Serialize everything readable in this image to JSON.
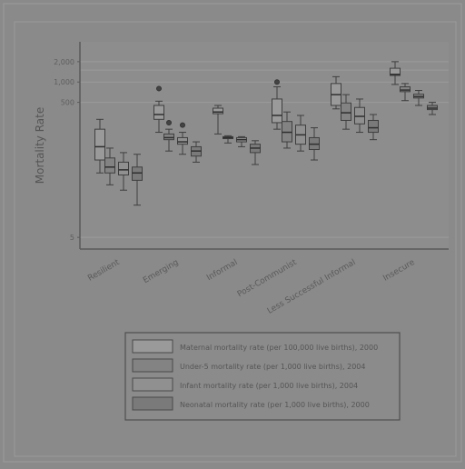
{
  "chart_data": {
    "type": "box",
    "title": "",
    "xlabel": "",
    "ylabel": "Mortality Rate",
    "y_scale": "log",
    "y_ticks": [
      "2,000",
      "1,000",
      "500",
      "5"
    ],
    "categories": [
      "Resilient",
      "Emerging",
      "Informal",
      "Post-Communist",
      "Less Successful Informal",
      "Insecure"
    ],
    "series": [
      {
        "name": "Maternal mortality rate (per 100,000 live births), 2000",
        "color": "#9a9a9a",
        "boxes": [
          {
            "min": 45,
            "q1": 70,
            "median": 110,
            "q3": 200,
            "max": 280
          },
          {
            "min": 180,
            "q1": 280,
            "median": 330,
            "q3": 450,
            "max": 520,
            "outliers": [
              800
            ]
          },
          {
            "min": 170,
            "q1": 340,
            "median": 360,
            "q3": 410,
            "max": 450
          },
          {
            "min": 200,
            "q1": 250,
            "median": 320,
            "q3": 560,
            "max": 850,
            "outliers": [
              1000
            ]
          },
          {
            "min": 400,
            "q1": 450,
            "median": 650,
            "q3": 950,
            "max": 1200
          },
          {
            "min": 920,
            "q1": 1250,
            "median": 1300,
            "q3": 1600,
            "max": 2000
          }
        ]
      },
      {
        "name": "Under-5 mortality rate (per 1,000 live births), 2004",
        "color": "#838383",
        "boxes": [
          {
            "min": 30,
            "q1": 45,
            "median": 55,
            "q3": 75,
            "max": 105
          },
          {
            "min": 95,
            "q1": 140,
            "median": 150,
            "q3": 170,
            "max": 200,
            "outliers": [
              250
            ]
          },
          {
            "min": 125,
            "q1": 145,
            "median": 150,
            "q3": 155,
            "max": 160
          },
          {
            "min": 105,
            "q1": 130,
            "median": 180,
            "q3": 260,
            "max": 360
          },
          {
            "min": 200,
            "q1": 270,
            "median": 350,
            "q3": 490,
            "max": 650
          },
          {
            "min": 530,
            "q1": 720,
            "median": 760,
            "q3": 850,
            "max": 950
          }
        ]
      },
      {
        "name": "Infant mortality rate (per 1,000 live births), 2004",
        "color": "#909090",
        "boxes": [
          {
            "min": 25,
            "q1": 42,
            "median": 50,
            "q3": 65,
            "max": 90
          },
          {
            "min": 85,
            "q1": 120,
            "median": 130,
            "q3": 150,
            "max": 180,
            "outliers": [
              230
            ]
          },
          {
            "min": 110,
            "q1": 130,
            "median": 140,
            "q3": 150,
            "max": 155
          },
          {
            "min": 95,
            "q1": 120,
            "median": 165,
            "q3": 230,
            "max": 320
          },
          {
            "min": 180,
            "q1": 240,
            "median": 310,
            "q3": 420,
            "max": 560
          },
          {
            "min": 450,
            "q1": 580,
            "median": 610,
            "q3": 660,
            "max": 750
          }
        ]
      },
      {
        "name": "Neonatal mortality rate (per 1,000 live births), 2000",
        "color": "#7a7a7a",
        "boxes": [
          {
            "min": 15,
            "q1": 35,
            "median": 45,
            "q3": 55,
            "max": 85
          },
          {
            "min": 65,
            "q1": 80,
            "median": 95,
            "q3": 110,
            "max": 130
          },
          {
            "min": 60,
            "q1": 90,
            "median": 105,
            "q3": 120,
            "max": 135
          },
          {
            "min": 70,
            "q1": 100,
            "median": 120,
            "q3": 150,
            "max": 210
          },
          {
            "min": 140,
            "q1": 180,
            "median": 210,
            "q3": 270,
            "max": 330
          },
          {
            "min": 330,
            "q1": 390,
            "median": 410,
            "q3": 450,
            "max": 500
          }
        ]
      }
    ]
  }
}
